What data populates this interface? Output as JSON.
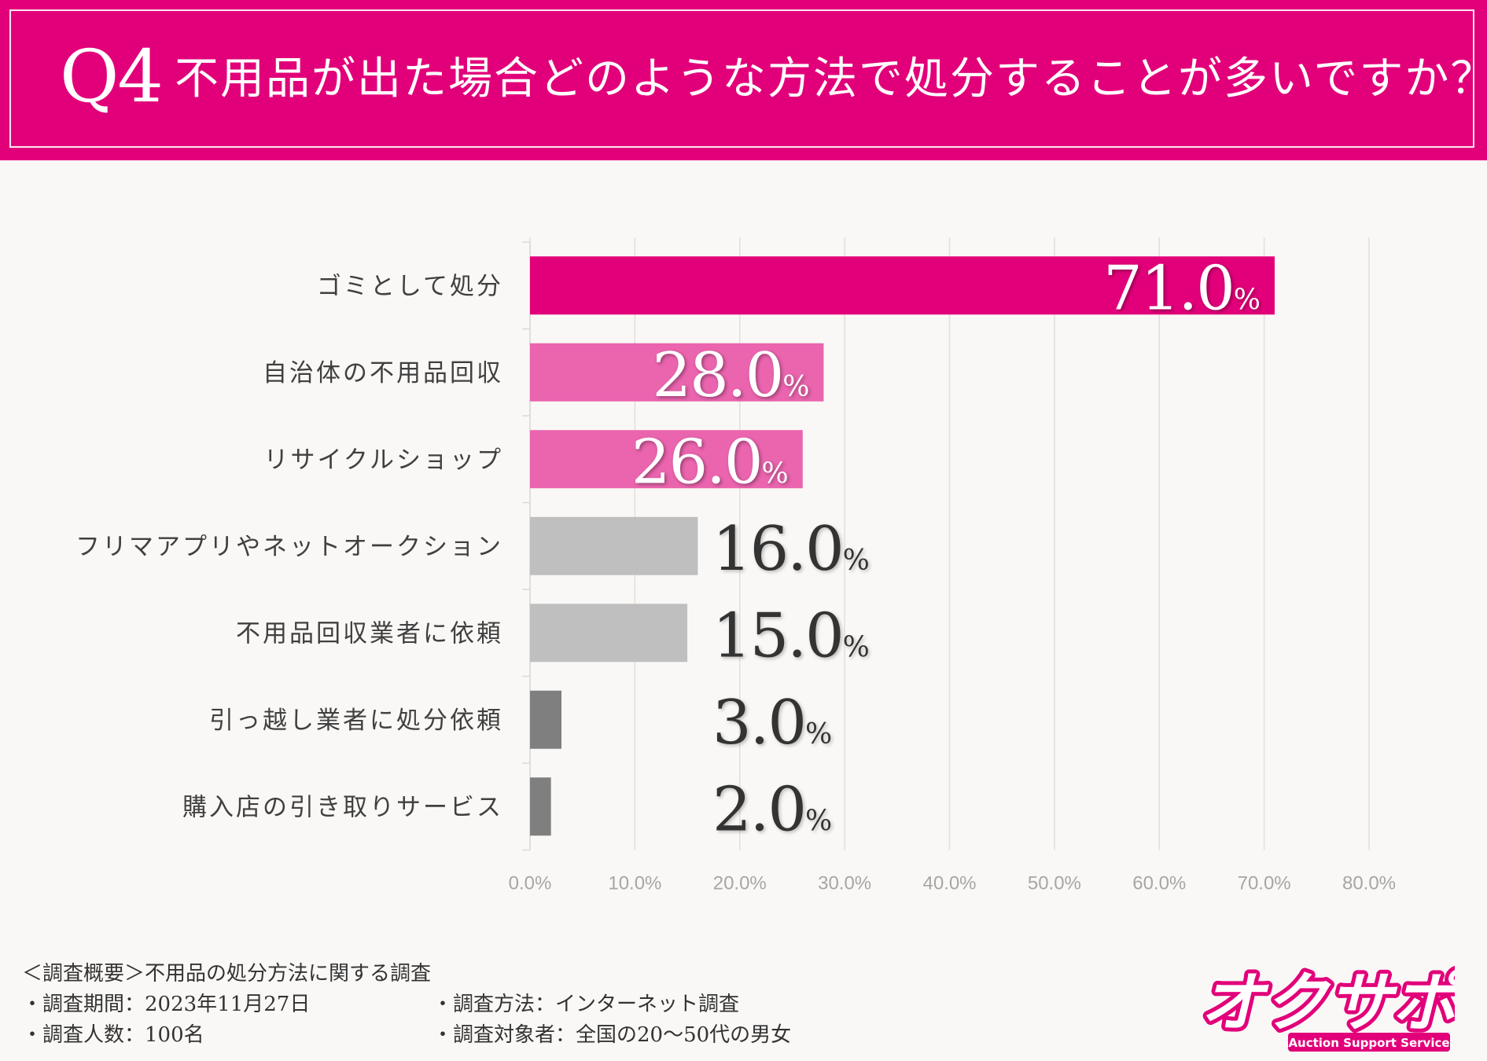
{
  "header": {
    "q_number": "Q4",
    "question": "不用品が出た場合どのような方法で処分することが多いですか？"
  },
  "colors": {
    "header_bg": "#e2007a",
    "top_bar": "#e2007a",
    "mid_bar": "#ea64ae",
    "gray_bar": "#bfbfbf",
    "dark_bar": "#7f7f7f",
    "page_bg": "#faf8f6"
  },
  "chart_data": {
    "type": "bar",
    "orientation": "horizontal",
    "categories": [
      "ゴミとして処分",
      "自治体の不用品回収",
      "リサイクルショップ",
      "フリマアプリやネットオークション",
      "不用品回収業者に依頼",
      "引っ越し業者に処分依頼",
      "購入店の引き取りサービス"
    ],
    "values": [
      71.0,
      28.0,
      26.0,
      16.0,
      15.0,
      3.0,
      2.0
    ],
    "value_labels": [
      "71.0",
      "28.0",
      "26.0",
      "16.0",
      "15.0",
      "3.0",
      "2.0"
    ],
    "unit": "%",
    "xlim": [
      0,
      80
    ],
    "ticks": [
      "0.0%",
      "10.0%",
      "20.0%",
      "30.0%",
      "40.0%",
      "50.0%",
      "60.0%",
      "70.0%",
      "80.0%"
    ],
    "grid": true,
    "title": "",
    "xlabel": "",
    "ylabel": ""
  },
  "footer": {
    "overview": "＜調査概要＞不用品の処分方法に関する調査",
    "period": "・調査期間：2023年11月27日",
    "method": "・調査方法：インターネット調査",
    "count": "・調査人数：100名",
    "target": "・調査対象者：全国の20〜50代の男女"
  },
  "logo": {
    "text": "オクサポ!",
    "subtitle": "Auction Support Service"
  }
}
